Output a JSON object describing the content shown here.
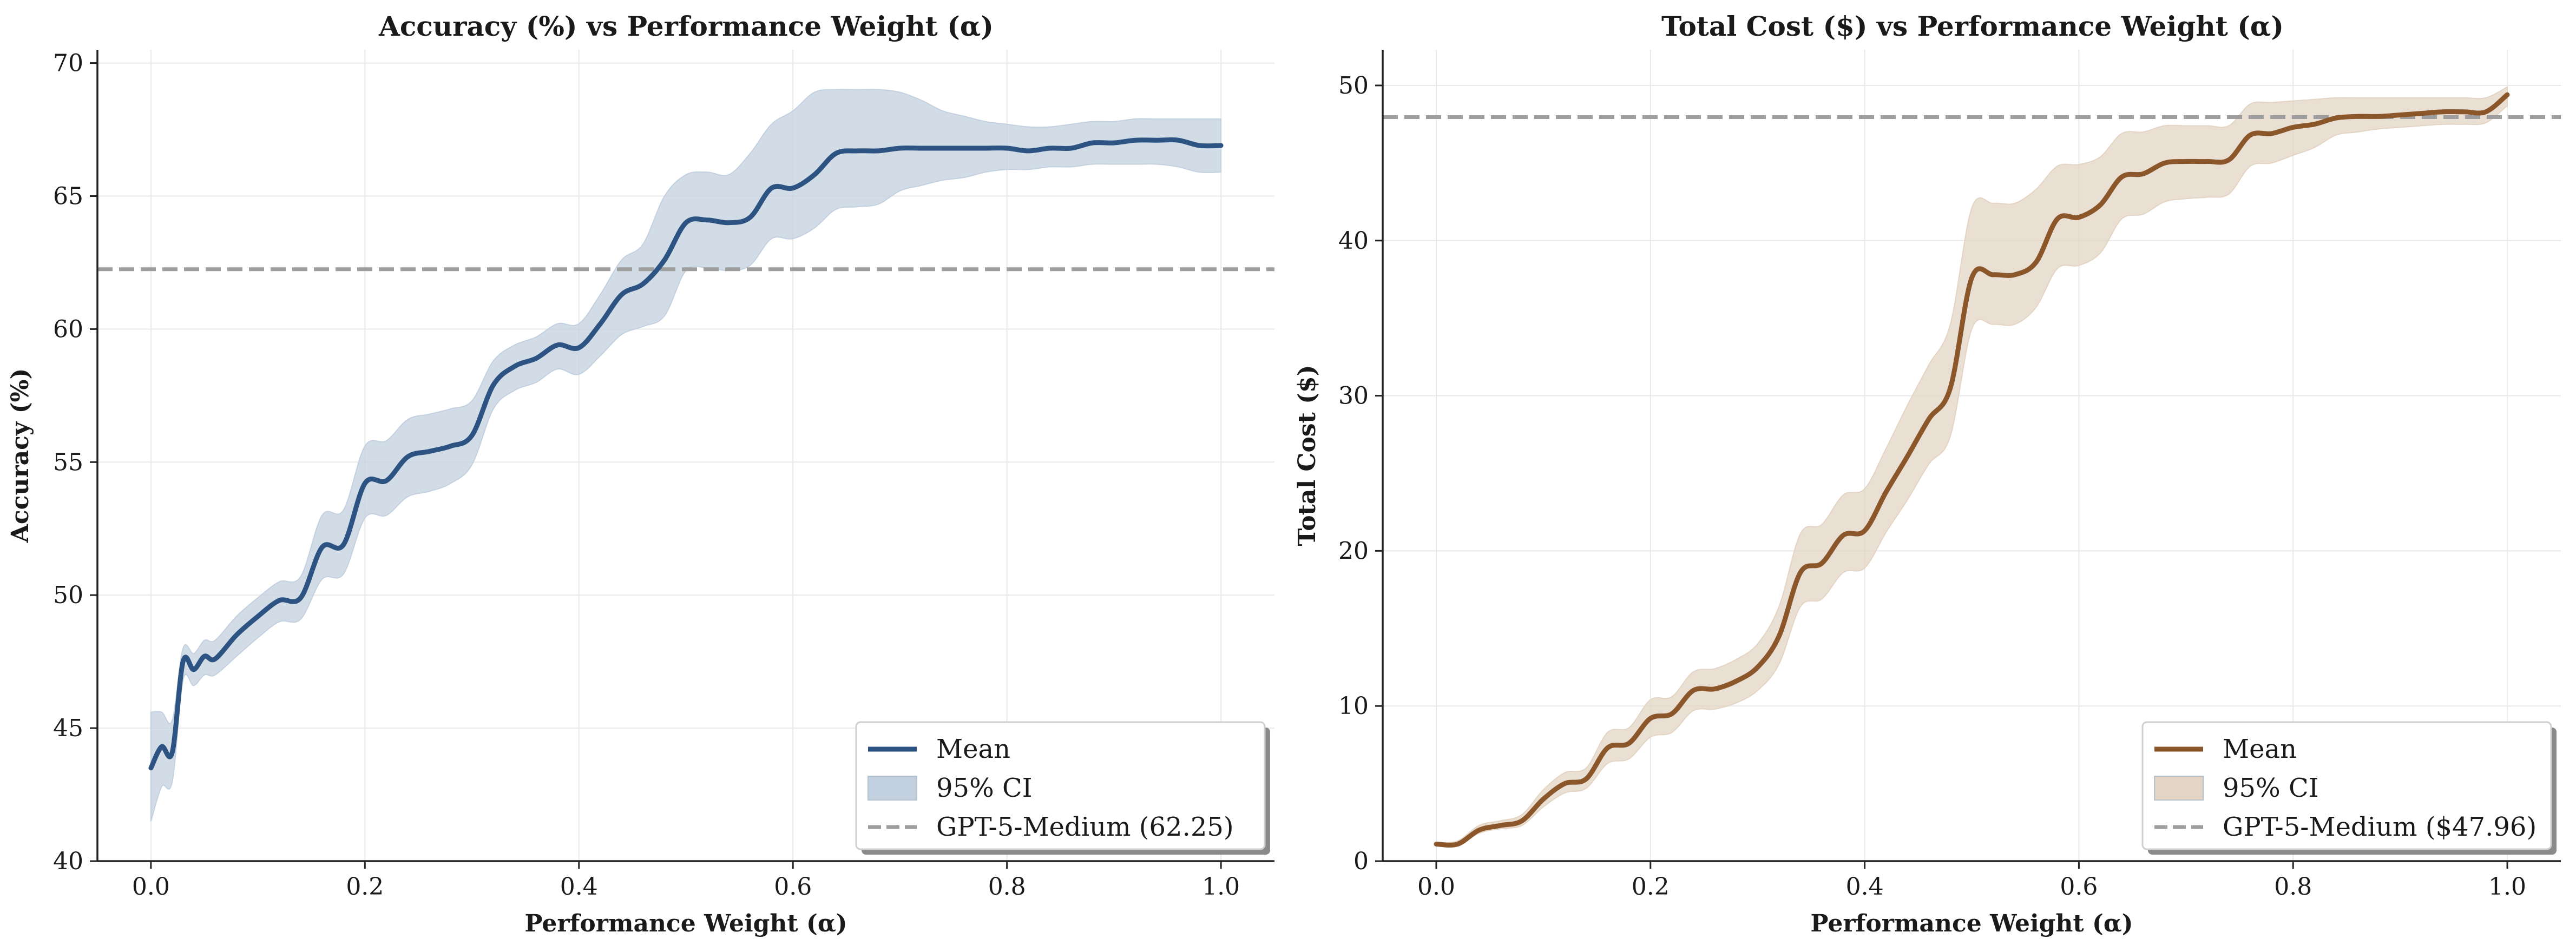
{
  "chart_data": [
    {
      "type": "line",
      "title": "Accuracy (%) vs Performance Weight (α)",
      "xlabel": "Performance Weight (α)",
      "ylabel": "Accuracy (%)",
      "xlim": [
        -0.05,
        1.05
      ],
      "ylim": [
        40,
        70.5
      ],
      "xticks": [
        "0.0",
        "0.2",
        "0.4",
        "0.6",
        "0.8",
        "1.0"
      ],
      "yticks": [
        "40",
        "45",
        "50",
        "55",
        "60",
        "65",
        "70"
      ],
      "grid": true,
      "legend_position": "lower-right",
      "colors": {
        "mean": "#2c5382",
        "ci": "#c3d0df",
        "reference": "#9e9e9e"
      },
      "series": [
        {
          "name": "Mean",
          "x": [
            0.0,
            0.01,
            0.02,
            0.03,
            0.04,
            0.05,
            0.06,
            0.08,
            0.1,
            0.12,
            0.14,
            0.16,
            0.18,
            0.2,
            0.22,
            0.24,
            0.26,
            0.28,
            0.3,
            0.32,
            0.34,
            0.36,
            0.38,
            0.4,
            0.42,
            0.44,
            0.46,
            0.48,
            0.5,
            0.52,
            0.54,
            0.56,
            0.58,
            0.6,
            0.62,
            0.64,
            0.66,
            0.68,
            0.7,
            0.72,
            0.74,
            0.76,
            0.78,
            0.8,
            0.82,
            0.84,
            0.86,
            0.88,
            0.9,
            0.92,
            0.94,
            0.96,
            0.98,
            1.0
          ],
          "values": [
            43.5,
            44.3,
            44.1,
            47.5,
            47.2,
            47.7,
            47.6,
            48.5,
            49.2,
            49.8,
            49.9,
            51.8,
            51.9,
            54.2,
            54.3,
            55.2,
            55.4,
            55.6,
            56.0,
            57.9,
            58.6,
            58.9,
            59.4,
            59.3,
            60.2,
            61.3,
            61.7,
            62.6,
            64.0,
            64.1,
            64.0,
            64.2,
            65.3,
            65.3,
            65.8,
            66.6,
            66.7,
            66.7,
            66.8,
            66.8,
            66.8,
            66.8,
            66.8,
            66.8,
            66.7,
            66.8,
            66.8,
            67.0,
            67.0,
            67.1,
            67.1,
            67.1,
            66.9,
            66.9
          ],
          "ci_lower": [
            41.5,
            42.8,
            43.0,
            46.8,
            46.6,
            47.0,
            47.0,
            47.7,
            48.4,
            49.0,
            49.1,
            50.6,
            50.8,
            52.9,
            53.0,
            53.7,
            53.9,
            54.2,
            54.9,
            57.0,
            57.7,
            58.0,
            58.5,
            58.3,
            59.0,
            59.8,
            60.1,
            60.5,
            62.2,
            62.3,
            62.2,
            62.4,
            63.4,
            63.4,
            63.8,
            64.5,
            64.6,
            64.7,
            65.2,
            65.4,
            65.6,
            65.7,
            65.9,
            66.0,
            66.0,
            66.1,
            66.1,
            66.2,
            66.2,
            66.2,
            66.2,
            66.1,
            65.9,
            65.9
          ],
          "ci_upper": [
            45.6,
            45.6,
            45.3,
            48.0,
            47.8,
            48.3,
            48.3,
            49.2,
            49.9,
            50.5,
            50.7,
            53.0,
            53.2,
            55.6,
            55.8,
            56.6,
            56.8,
            57.0,
            57.3,
            58.8,
            59.4,
            59.7,
            60.2,
            60.2,
            61.3,
            62.6,
            63.2,
            65.0,
            65.8,
            65.9,
            65.8,
            66.6,
            67.7,
            68.2,
            68.9,
            69.0,
            69.0,
            69.0,
            68.9,
            68.6,
            68.2,
            68.0,
            67.8,
            67.7,
            67.6,
            67.6,
            67.7,
            67.8,
            67.8,
            67.9,
            67.9,
            67.9,
            67.9,
            67.9
          ]
        }
      ],
      "reference_line": {
        "name": "GPT-5-Medium (62.25)",
        "y": 62.25
      },
      "legend": [
        "Mean",
        "95% CI",
        "GPT-5-Medium (62.25)"
      ]
    },
    {
      "type": "line",
      "title": "Total Cost ($) vs Performance Weight (α)",
      "xlabel": "Performance Weight (α)",
      "ylabel": "Total Cost ($)",
      "xlim": [
        -0.05,
        1.05
      ],
      "ylim": [
        0,
        52.3
      ],
      "xticks": [
        "0.0",
        "0.2",
        "0.4",
        "0.6",
        "0.8",
        "1.0"
      ],
      "yticks": [
        "0",
        "10",
        "20",
        "30",
        "40",
        "50"
      ],
      "grid": true,
      "legend_position": "lower-right",
      "colors": {
        "mean": "#8a562a",
        "ci": "#e3d4c4",
        "reference": "#9e9e9e"
      },
      "series": [
        {
          "name": "Mean",
          "x": [
            0.0,
            0.02,
            0.04,
            0.06,
            0.08,
            0.1,
            0.12,
            0.14,
            0.16,
            0.18,
            0.2,
            0.22,
            0.24,
            0.26,
            0.28,
            0.3,
            0.32,
            0.34,
            0.36,
            0.38,
            0.4,
            0.42,
            0.44,
            0.46,
            0.48,
            0.5,
            0.52,
            0.54,
            0.56,
            0.58,
            0.6,
            0.62,
            0.64,
            0.66,
            0.68,
            0.7,
            0.72,
            0.74,
            0.76,
            0.78,
            0.8,
            0.82,
            0.84,
            0.86,
            0.88,
            0.9,
            0.92,
            0.94,
            0.96,
            0.98,
            1.0
          ],
          "values": [
            1.1,
            1.1,
            2.0,
            2.3,
            2.6,
            4.0,
            5.0,
            5.3,
            7.3,
            7.6,
            9.2,
            9.5,
            11.0,
            11.1,
            11.6,
            12.5,
            14.5,
            18.6,
            19.2,
            21.0,
            21.3,
            23.8,
            26.1,
            28.5,
            30.5,
            37.6,
            37.8,
            37.8,
            38.6,
            41.4,
            41.5,
            42.3,
            44.1,
            44.3,
            45.0,
            45.1,
            45.1,
            45.2,
            46.8,
            46.9,
            47.3,
            47.5,
            47.9,
            48.0,
            48.0,
            48.1,
            48.2,
            48.3,
            48.3,
            48.3,
            49.4
          ],
          "ci_lower": [
            1.0,
            1.0,
            1.8,
            2.1,
            2.3,
            3.5,
            4.4,
            4.7,
            6.3,
            6.6,
            8.0,
            8.3,
            9.7,
            9.8,
            10.2,
            11.0,
            12.7,
            16.4,
            16.9,
            18.6,
            18.9,
            21.2,
            23.3,
            25.6,
            27.4,
            34.3,
            34.6,
            34.6,
            35.7,
            38.2,
            38.4,
            39.2,
            41.4,
            41.7,
            42.5,
            42.7,
            42.8,
            43.0,
            44.8,
            45.0,
            45.5,
            46.0,
            46.8,
            47.0,
            47.2,
            47.3,
            47.4,
            47.5,
            47.5,
            47.6,
            48.7
          ],
          "ci_upper": [
            1.2,
            1.3,
            2.3,
            2.6,
            3.0,
            4.6,
            5.7,
            6.0,
            8.3,
            8.6,
            10.4,
            10.6,
            12.2,
            12.4,
            13.0,
            14.0,
            16.4,
            21.1,
            21.7,
            23.6,
            24.0,
            26.6,
            29.4,
            32.0,
            34.6,
            42.1,
            42.4,
            42.4,
            43.3,
            44.8,
            44.9,
            45.4,
            46.9,
            47.0,
            47.4,
            47.4,
            47.4,
            47.4,
            48.8,
            48.9,
            49.0,
            49.1,
            49.2,
            49.2,
            49.2,
            49.2,
            49.2,
            49.2,
            49.2,
            49.2,
            49.9
          ]
        }
      ],
      "reference_line": {
        "name": "GPT-5-Medium ($47.96)",
        "y": 47.96
      },
      "legend": [
        "Mean",
        "95% CI",
        "GPT-5-Medium ($47.96)"
      ]
    }
  ]
}
